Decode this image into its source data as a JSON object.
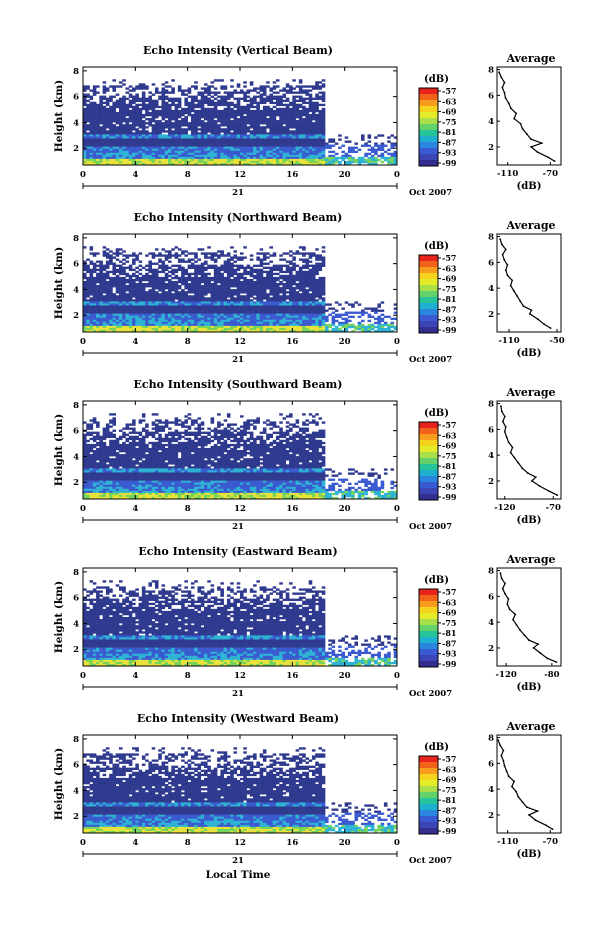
{
  "chart_data": [
    {
      "type": "heatmap",
      "title": "Echo Intensity (Vertical Beam)",
      "ylabel": "Height (km)",
      "x_ticks": [
        "0",
        "4",
        "8",
        "12",
        "16",
        "20",
        "0"
      ],
      "y_ticks": [
        "8",
        "6",
        "4",
        "2"
      ],
      "date_day": "21",
      "date_month_year": "Oct 2007",
      "colorbar_unit": "(dB)",
      "colorbar_ticks": [
        "-57",
        "-63",
        "-69",
        "-75",
        "-81",
        "-87",
        "-93",
        "-99"
      ],
      "profile": {
        "title": "Average",
        "x_ticks": [
          "-110",
          "-70"
        ],
        "xlabel": "(dB)",
        "y_ticks": [
          "8",
          "6",
          "4",
          "2"
        ],
        "x_range": [
          -120,
          -60
        ],
        "y_range": [
          0.6,
          8.2
        ],
        "height_km": [
          0.9,
          1.2,
          1.6,
          2.0,
          2.3,
          2.6,
          3.0,
          3.4,
          3.8,
          4.2,
          4.6,
          5.0,
          5.4,
          5.8,
          6.2,
          6.6,
          7.0,
          7.4,
          7.8
        ],
        "avg_db": [
          -66,
          -72,
          -82,
          -88,
          -78,
          -88,
          -92,
          -96,
          -98,
          -104,
          -102,
          -107,
          -109,
          -112,
          -113,
          -115,
          -113,
          -116,
          -118
        ]
      }
    },
    {
      "type": "heatmap",
      "title": "Echo Intensity (Northward Beam)",
      "ylabel": "Height (km)",
      "x_ticks": [
        "0",
        "4",
        "8",
        "12",
        "16",
        "20",
        "0"
      ],
      "y_ticks": [
        "8",
        "6",
        "4",
        "2"
      ],
      "date_day": "21",
      "date_month_year": "Oct 2007",
      "colorbar_unit": "(dB)",
      "colorbar_ticks": [
        "-57",
        "-63",
        "-69",
        "-75",
        "-81",
        "-87",
        "-93",
        "-99"
      ],
      "profile": {
        "title": "Average",
        "x_ticks": [
          "-110",
          "-50"
        ],
        "xlabel": "(dB)",
        "y_ticks": [
          "8",
          "6",
          "4",
          "2"
        ],
        "x_range": [
          -125,
          -45
        ],
        "y_range": [
          0.6,
          8.2
        ],
        "height_km": [
          0.9,
          1.2,
          1.6,
          2.0,
          2.3,
          2.6,
          3.0,
          3.4,
          3.8,
          4.2,
          4.6,
          5.0,
          5.4,
          5.8,
          6.2,
          6.6,
          7.0,
          7.4,
          7.8
        ],
        "avg_db": [
          -58,
          -66,
          -74,
          -84,
          -82,
          -92,
          -96,
          -100,
          -104,
          -108,
          -106,
          -112,
          -114,
          -112,
          -116,
          -118,
          -114,
          -119,
          -121
        ]
      }
    },
    {
      "type": "heatmap",
      "title": "Echo Intensity (Southward Beam)",
      "ylabel": "Height (km)",
      "x_ticks": [
        "0",
        "4",
        "8",
        "12",
        "16",
        "20",
        "0"
      ],
      "y_ticks": [
        "8",
        "6",
        "4",
        "2"
      ],
      "date_day": "21",
      "date_month_year": "Oct 2007",
      "colorbar_unit": "(dB)",
      "colorbar_ticks": [
        "-57",
        "-63",
        "-69",
        "-75",
        "-81",
        "-87",
        "-93",
        "-99"
      ],
      "profile": {
        "title": "Average",
        "x_ticks": [
          "-120",
          "-70"
        ],
        "xlabel": "(dB)",
        "y_ticks": [
          "8",
          "6",
          "4",
          "2"
        ],
        "x_range": [
          -128,
          -62
        ],
        "y_range": [
          0.6,
          8.2
        ],
        "height_km": [
          0.9,
          1.2,
          1.6,
          2.0,
          2.3,
          2.6,
          3.0,
          3.4,
          3.8,
          4.2,
          4.6,
          5.0,
          5.4,
          5.8,
          6.2,
          6.6,
          7.0,
          7.4,
          7.8
        ],
        "avg_db": [
          -66,
          -74,
          -84,
          -92,
          -88,
          -96,
          -102,
          -106,
          -110,
          -114,
          -112,
          -116,
          -118,
          -120,
          -119,
          -122,
          -120,
          -123,
          -124
        ]
      }
    },
    {
      "type": "heatmap",
      "title": "Echo Intensity (Eastward Beam)",
      "ylabel": "Height (km)",
      "x_ticks": [
        "0",
        "4",
        "8",
        "12",
        "16",
        "20",
        "0"
      ],
      "y_ticks": [
        "8",
        "6",
        "4",
        "2"
      ],
      "date_day": "21",
      "date_month_year": "Oct 2007",
      "colorbar_unit": "(dB)",
      "colorbar_ticks": [
        "-57",
        "-63",
        "-69",
        "-75",
        "-81",
        "-87",
        "-93",
        "-99"
      ],
      "profile": {
        "title": "Average",
        "x_ticks": [
          "-120",
          "-80"
        ],
        "xlabel": "(dB)",
        "y_ticks": [
          "8",
          "6",
          "4",
          "2"
        ],
        "x_range": [
          -128,
          -72
        ],
        "y_range": [
          0.6,
          8.2
        ],
        "height_km": [
          0.9,
          1.2,
          1.6,
          2.0,
          2.3,
          2.6,
          3.0,
          3.4,
          3.8,
          4.2,
          4.6,
          5.0,
          5.4,
          5.8,
          6.2,
          6.6,
          7.0,
          7.4,
          7.8
        ],
        "avg_db": [
          -76,
          -84,
          -90,
          -96,
          -92,
          -100,
          -104,
          -108,
          -111,
          -114,
          -112,
          -117,
          -119,
          -118,
          -121,
          -123,
          -121,
          -124,
          -125
        ]
      }
    },
    {
      "type": "heatmap",
      "title": "Echo Intensity (Westward Beam)",
      "ylabel": "Height (km)",
      "x_ticks": [
        "0",
        "4",
        "8",
        "12",
        "16",
        "20",
        "0"
      ],
      "y_ticks": [
        "8",
        "6",
        "4",
        "2"
      ],
      "date_day": "21",
      "date_month_year": "Oct 2007",
      "colorbar_unit": "(dB)",
      "colorbar_ticks": [
        "-57",
        "-63",
        "-69",
        "-75",
        "-81",
        "-87",
        "-93",
        "-99"
      ],
      "profile": {
        "title": "Average",
        "x_ticks": [
          "-110",
          "-70"
        ],
        "xlabel": "(dB)",
        "y_ticks": [
          "8",
          "6",
          "4",
          "2"
        ],
        "x_range": [
          -120,
          -60
        ],
        "y_range": [
          0.6,
          8.2
        ],
        "height_km": [
          0.9,
          1.2,
          1.6,
          2.0,
          2.3,
          2.6,
          3.0,
          3.4,
          3.8,
          4.2,
          4.6,
          5.0,
          5.4,
          5.8,
          6.2,
          6.6,
          7.0,
          7.4,
          7.8
        ],
        "avg_db": [
          -68,
          -74,
          -84,
          -90,
          -82,
          -92,
          -96,
          -100,
          -102,
          -106,
          -104,
          -109,
          -111,
          -113,
          -114,
          -116,
          -114,
          -117,
          -119
        ]
      }
    }
  ],
  "x_axis_label": "Local Time",
  "colors": {
    "colorbar_top_to_bottom": [
      "#e8231d",
      "#f2621b",
      "#f79c1c",
      "#f5d21d",
      "#e4ec2a",
      "#a9e04a",
      "#63d26b",
      "#27c39a",
      "#1fb0cf",
      "#2a86de",
      "#3a5ad3",
      "#3b45b6",
      "#342f8e"
    ],
    "heatmap_dark": "#2f3a8f",
    "heatmap_mid": "#3a5bd0",
    "heatmap_cyan": "#2fb3d5",
    "heatmap_green": "#76d45a",
    "heatmap_yellow": "#e8e23a"
  }
}
